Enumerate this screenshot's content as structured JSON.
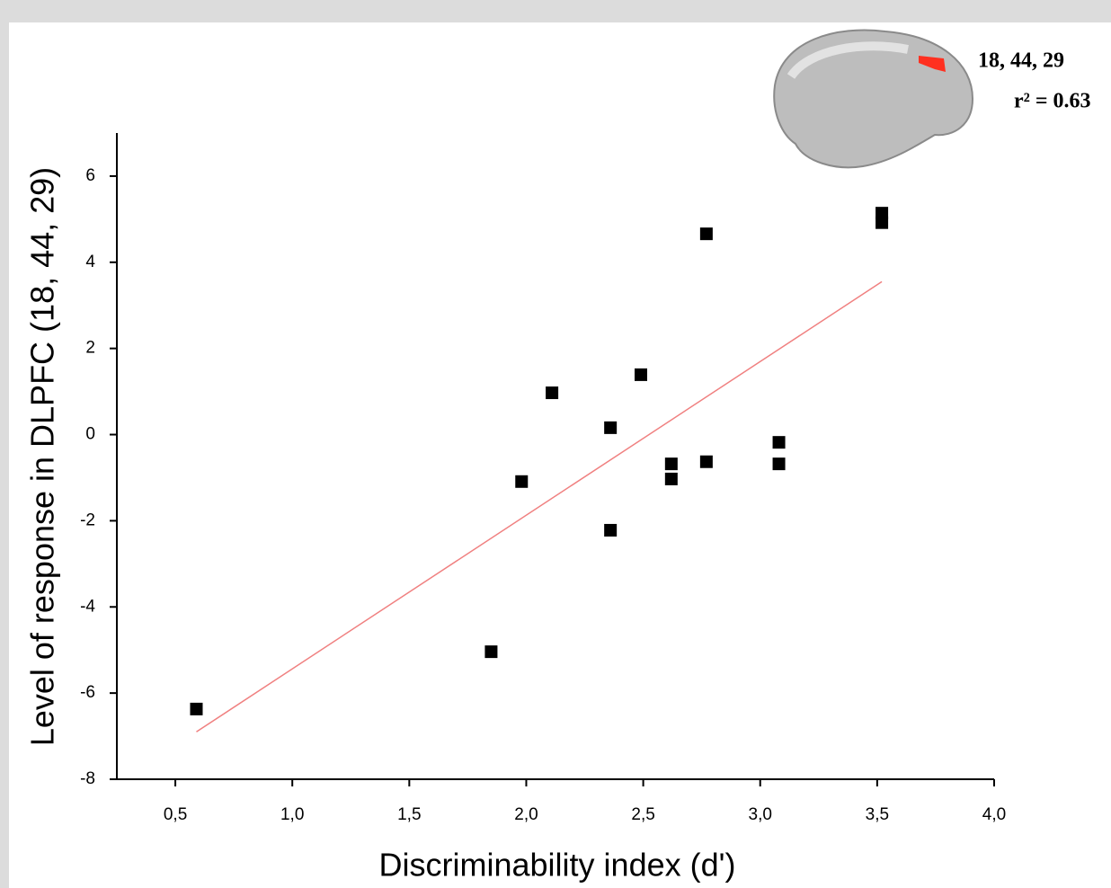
{
  "chart_data": {
    "type": "scatter",
    "x_label": "Discriminability index (d')",
    "y_label": "Level of response in DLPFC (18, 44, 29)",
    "annotations": [
      "18, 44, 29",
      "r² = 0.63"
    ],
    "x": [
      0.59,
      1.85,
      1.98,
      2.11,
      2.36,
      2.36,
      2.49,
      2.62,
      2.62,
      2.77,
      2.77,
      3.08,
      3.08,
      3.52,
      3.52
    ],
    "values": [
      -6.37,
      -5.04,
      -1.09,
      0.97,
      0.16,
      -2.22,
      1.39,
      -0.68,
      -1.03,
      4.66,
      -0.63,
      -0.18,
      -0.68,
      5.14,
      4.92
    ],
    "color": "#000000",
    "fit_line": {
      "x": [
        0.59,
        3.52
      ],
      "y": [
        -6.9,
        3.55
      ],
      "color": "#f08080"
    },
    "xlim": [
      0.25,
      4.0
    ],
    "ylim": [
      -8,
      7
    ],
    "xticks": [
      {
        "value": 0.5,
        "label": "0,5"
      },
      {
        "value": 1.0,
        "label": "1,0"
      },
      {
        "value": 1.5,
        "label": "1,5"
      },
      {
        "value": 2.0,
        "label": "2,0"
      },
      {
        "value": 2.5,
        "label": "2,5"
      },
      {
        "value": 3.0,
        "label": "3,0"
      },
      {
        "value": 3.5,
        "label": "3,5"
      },
      {
        "value": 4.0,
        "label": "4,0"
      }
    ],
    "yticks": [
      -8,
      -6,
      -4,
      -2,
      0,
      2,
      4,
      6
    ]
  }
}
